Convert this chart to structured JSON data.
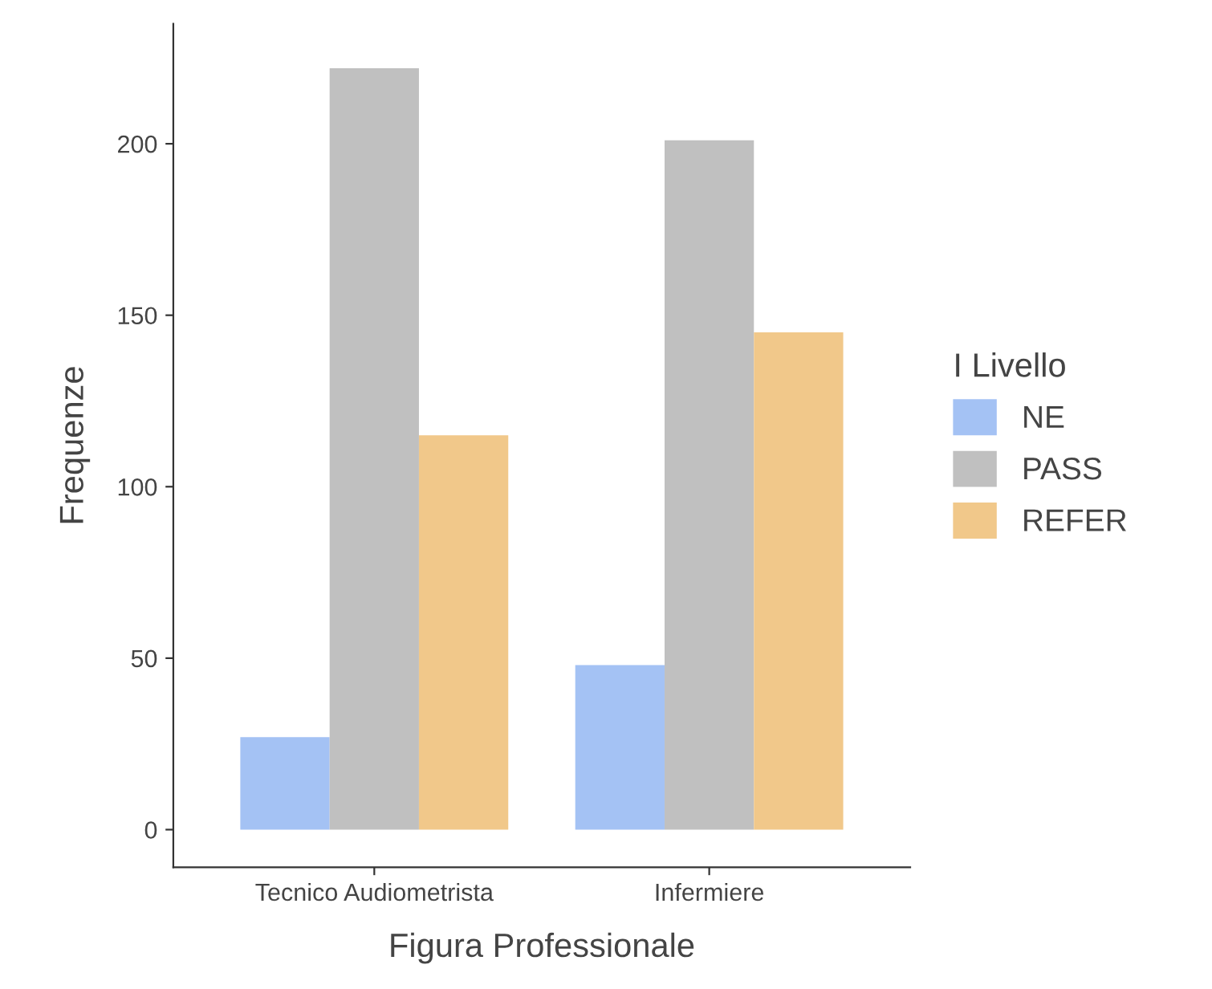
{
  "chart_data": {
    "type": "bar",
    "xlabel": "Figura Professionale",
    "ylabel": "Frequenze",
    "legend_title": "I Livello",
    "categories": [
      "Tecnico Audiometrista",
      "Infermiere"
    ],
    "series": [
      {
        "name": "NE",
        "color": "#a4c2f4",
        "values": [
          27,
          48
        ]
      },
      {
        "name": "PASS",
        "color": "#c0c0c0",
        "values": [
          222,
          201
        ]
      },
      {
        "name": "REFER",
        "color": "#f1c88a",
        "values": [
          115,
          145
        ]
      }
    ],
    "ylim": [
      -11,
      235
    ],
    "yticks": [
      0,
      50,
      100,
      150,
      200
    ],
    "grid": false,
    "legend": "right"
  }
}
